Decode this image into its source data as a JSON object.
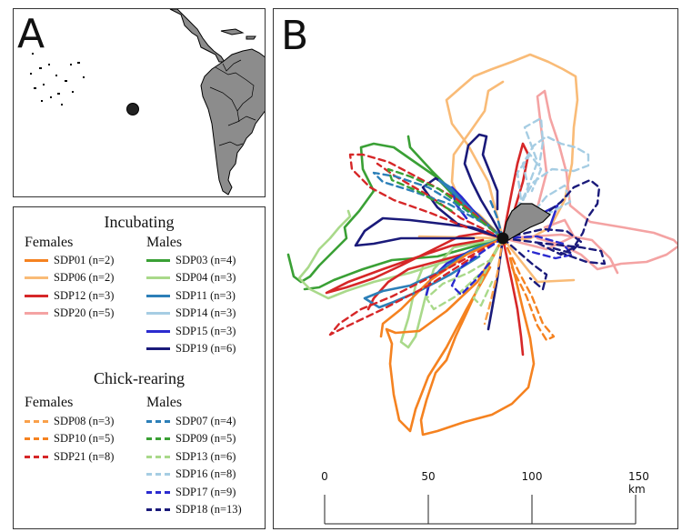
{
  "panel_a": {
    "letter": "A"
  },
  "panel_b": {
    "letter": "B"
  },
  "legend": {
    "incubating": {
      "title": "Incubating",
      "females_label": "Females",
      "males_label": "Males",
      "females": [
        {
          "label": "SDP01 (n=2)",
          "color": "#f58220",
          "style": "solid"
        },
        {
          "label": "SDP06 (n=2)",
          "color": "#f9bb77",
          "style": "solid"
        },
        {
          "label": "SDP12 (n=3)",
          "color": "#d62728",
          "style": "solid"
        },
        {
          "label": "SDP20 (n=5)",
          "color": "#f4a3a3",
          "style": "solid"
        }
      ],
      "males": [
        {
          "label": "SDP03 (n=4)",
          "color": "#3aa035",
          "style": "solid"
        },
        {
          "label": "SDP04 (n=3)",
          "color": "#a9d98a",
          "style": "solid"
        },
        {
          "label": "SDP11 (n=3)",
          "color": "#2c7fb8",
          "style": "solid"
        },
        {
          "label": "SDP14 (n=3)",
          "color": "#a6cde3",
          "style": "solid"
        },
        {
          "label": "SDP15 (n=3)",
          "color": "#2b2bcf",
          "style": "solid"
        },
        {
          "label": "SDP19 (n=6)",
          "color": "#1a1a7a",
          "style": "solid"
        }
      ]
    },
    "chick_rearing": {
      "title": "Chick-rearing",
      "females_label": "Females",
      "males_label": "Males",
      "females": [
        {
          "label": "SDP08 (n=3)",
          "color": "#f9a04a",
          "style": "dashed"
        },
        {
          "label": "SDP10 (n=5)",
          "color": "#f58220",
          "style": "dashed"
        },
        {
          "label": "SDP21 (n=8)",
          "color": "#d62728",
          "style": "dashed"
        }
      ],
      "males": [
        {
          "label": "SDP07 (n=4)",
          "color": "#2c7fb8",
          "style": "dashed"
        },
        {
          "label": "SDP09 (n=5)",
          "color": "#3aa035",
          "style": "dashed"
        },
        {
          "label": "SDP13 (n=6)",
          "color": "#a9d98a",
          "style": "dashed"
        },
        {
          "label": "SDP16 (n=8)",
          "color": "#a6cde3",
          "style": "dashed"
        },
        {
          "label": "SDP17 (n=9)",
          "color": "#2b2bcf",
          "style": "dashed"
        },
        {
          "label": "SDP18 (n=13)",
          "color": "#1a1a7a",
          "style": "dashed"
        }
      ]
    }
  },
  "scale_bar": {
    "ticks": [
      {
        "value": 0,
        "label": "0"
      },
      {
        "value": 50,
        "label": "50"
      },
      {
        "value": 100,
        "label": "100"
      },
      {
        "value": 150,
        "label": "150 km"
      }
    ]
  },
  "colors": {
    "land": "#8c8c8c",
    "colony": "#111111",
    "border": "#333333"
  }
}
